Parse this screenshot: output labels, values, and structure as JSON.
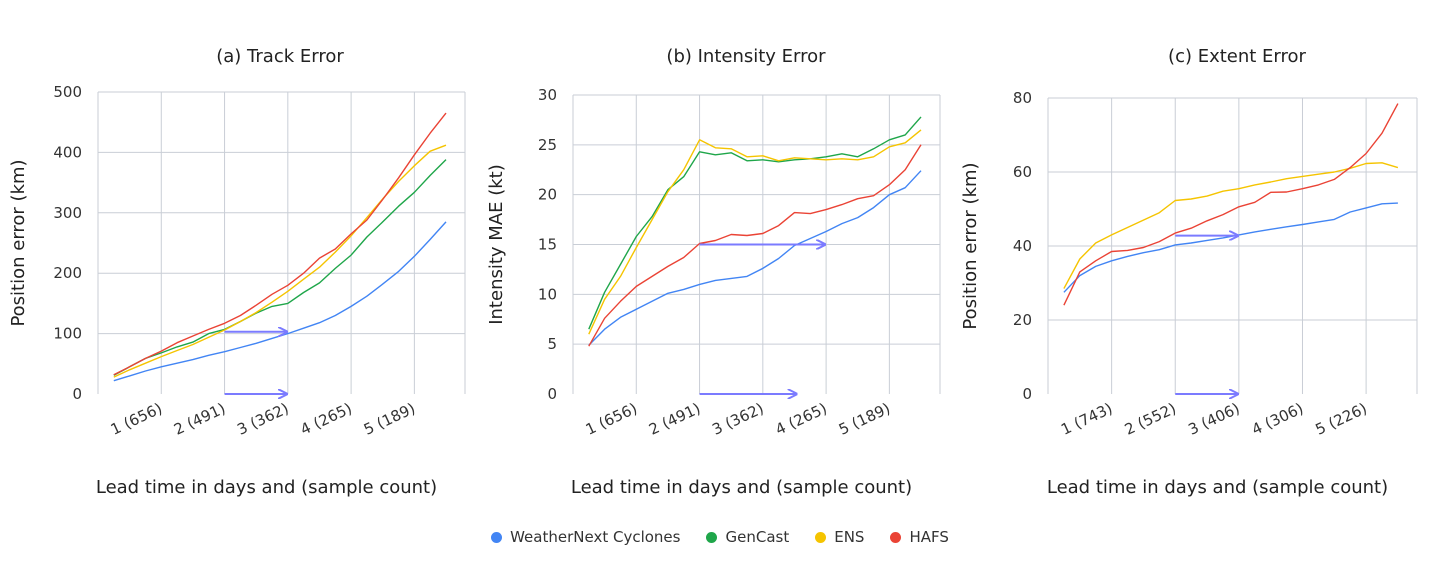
{
  "legend": [
    {
      "name": "WeatherNext Cyclones",
      "color": "#4285f4"
    },
    {
      "name": "GenCast",
      "color": "#1fa64a"
    },
    {
      "name": "ENS",
      "color": "#f5c400"
    },
    {
      "name": "HAFS",
      "color": "#ea4335"
    }
  ],
  "arrow_color": "#7b7bff",
  "chart_data": [
    {
      "type": "line",
      "title": "(a) Track Error",
      "xlabel": "Lead time in days and (sample count)",
      "ylabel": "Position error (km)",
      "ylim": [
        0,
        500
      ],
      "yticks": [
        0,
        100,
        200,
        300,
        400,
        500
      ],
      "xlim": [
        0,
        5.8
      ],
      "xticks": [
        1,
        2,
        3,
        4,
        5
      ],
      "xticklabels": [
        "1 (656)",
        "2 (491)",
        "3 (362)",
        "4 (265)",
        "5 (189)"
      ],
      "grid": true,
      "x": [
        0.25,
        0.5,
        0.75,
        1,
        1.25,
        1.5,
        1.75,
        2,
        2.25,
        2.5,
        2.75,
        3,
        3.25,
        3.5,
        3.75,
        4,
        4.25,
        4.5,
        4.75,
        5,
        5.25,
        5.5
      ],
      "series": [
        {
          "name": "WeatherNext Cyclones",
          "values": [
            22,
            30,
            38,
            45,
            51,
            57,
            64,
            70,
            77,
            84,
            92,
            100,
            109,
            118,
            130,
            145,
            162,
            182,
            203,
            228,
            256,
            285
          ]
        },
        {
          "name": "GenCast",
          "values": [
            31,
            45,
            59,
            68,
            78,
            86,
            100,
            107,
            120,
            134,
            145,
            150,
            168,
            184,
            208,
            230,
            260,
            285,
            311,
            334,
            362,
            388
          ]
        },
        {
          "name": "ENS",
          "values": [
            28,
            40,
            51,
            62,
            72,
            82,
            94,
            106,
            120,
            135,
            152,
            170,
            190,
            210,
            235,
            262,
            292,
            323,
            352,
            378,
            402,
            412
          ]
        },
        {
          "name": "HAFS",
          "values": [
            32,
            45,
            59,
            71,
            85,
            96,
            107,
            117,
            130,
            147,
            165,
            180,
            200,
            225,
            240,
            265,
            288,
            322,
            358,
            396,
            432,
            465
          ]
        }
      ],
      "arrows": [
        {
          "x0": 2,
          "x1": 3,
          "y": 103
        },
        {
          "x0": 2,
          "x1": 3,
          "y": 0
        }
      ]
    },
    {
      "type": "line",
      "title": "(b) Intensity Error",
      "xlabel": "Lead time in days and (sample count)",
      "ylabel": "Intensity MAE (kt)",
      "ylim": [
        0,
        30
      ],
      "yticks": [
        0,
        5,
        10,
        15,
        20,
        25,
        30
      ],
      "xlim": [
        0,
        5.8
      ],
      "xticks": [
        1,
        2,
        3,
        4,
        5
      ],
      "xticklabels": [
        "1 (656)",
        "2 (491)",
        "3 (362)",
        "4 (265)",
        "5 (189)"
      ],
      "grid": true,
      "x": [
        0.25,
        0.5,
        0.75,
        1,
        1.25,
        1.5,
        1.75,
        2,
        2.25,
        2.5,
        2.75,
        3,
        3.25,
        3.5,
        3.75,
        4,
        4.25,
        4.5,
        4.75,
        5,
        5.25,
        5.5
      ],
      "series": [
        {
          "name": "WeatherNext Cyclones",
          "values": [
            4.9,
            6.5,
            7.7,
            8.5,
            9.3,
            10.1,
            10.5,
            11.0,
            11.4,
            11.6,
            11.8,
            12.6,
            13.6,
            14.9,
            15.6,
            16.3,
            17.1,
            17.7,
            18.7,
            20.0,
            20.7,
            22.4
          ]
        },
        {
          "name": "GenCast",
          "values": [
            6.5,
            10.2,
            13.0,
            15.8,
            17.8,
            20.5,
            21.8,
            24.3,
            24.0,
            24.2,
            23.4,
            23.5,
            23.3,
            23.5,
            23.6,
            23.8,
            24.1,
            23.8,
            24.6,
            25.5,
            26.0,
            27.8
          ]
        },
        {
          "name": "ENS",
          "values": [
            6.0,
            9.5,
            11.8,
            14.7,
            17.5,
            20.3,
            22.5,
            25.5,
            24.7,
            24.6,
            23.8,
            23.9,
            23.4,
            23.7,
            23.6,
            23.5,
            23.6,
            23.5,
            23.8,
            24.8,
            25.2,
            26.5
          ]
        },
        {
          "name": "HAFS",
          "values": [
            4.8,
            7.6,
            9.3,
            10.8,
            11.8,
            12.8,
            13.7,
            15.1,
            15.4,
            16.0,
            15.9,
            16.1,
            16.9,
            18.2,
            18.1,
            18.5,
            19.0,
            19.6,
            19.9,
            21.0,
            22.5,
            25.0
          ]
        }
      ],
      "arrows": [
        {
          "x0": 2,
          "x1": 4,
          "y": 15
        },
        {
          "x0": 2,
          "x1": 3.55,
          "y": 0
        }
      ]
    },
    {
      "type": "line",
      "title": "(c) Extent Error",
      "xlabel": "Lead time in days and (sample count)",
      "ylabel": "Position error (km)",
      "ylim": [
        0,
        80
      ],
      "yticks": [
        0,
        20,
        40,
        60,
        80
      ],
      "xlim": [
        0,
        5.8
      ],
      "xticks": [
        1,
        2,
        3,
        4,
        5
      ],
      "xticklabels": [
        "1 (743)",
        "2 (552)",
        "3 (406)",
        "4 (306)",
        "5 (226)"
      ],
      "grid": true,
      "x": [
        0.25,
        0.5,
        0.75,
        1,
        1.25,
        1.5,
        1.75,
        2,
        2.25,
        2.5,
        2.75,
        3,
        3.25,
        3.5,
        3.75,
        4,
        4.25,
        4.5,
        4.75,
        5,
        5.25,
        5.5
      ],
      "series": [
        {
          "name": "WeatherNext Cyclones",
          "values": [
            27.5,
            32.0,
            34.5,
            36.0,
            37.2,
            38.2,
            39.0,
            40.3,
            40.8,
            41.5,
            42.2,
            43.0,
            43.8,
            44.5,
            45.2,
            45.8,
            46.5,
            47.2,
            49.2,
            50.3,
            51.4,
            51.6
          ]
        },
        {
          "name": "ENS",
          "values": [
            28.5,
            36.5,
            40.8,
            43.0,
            45.0,
            47.0,
            49.0,
            52.3,
            52.7,
            53.5,
            54.8,
            55.5,
            56.5,
            57.3,
            58.2,
            58.8,
            59.4,
            60.0,
            61.0,
            62.3,
            62.5,
            61.2
          ]
        },
        {
          "name": "HAFS",
          "values": [
            24.0,
            33.0,
            36.0,
            38.5,
            38.8,
            39.6,
            41.2,
            43.5,
            44.8,
            46.8,
            48.5,
            50.6,
            51.8,
            54.5,
            54.6,
            55.5,
            56.5,
            58.0,
            61.2,
            65.0,
            70.5,
            78.5
          ]
        }
      ],
      "arrows": [
        {
          "x0": 2,
          "x1": 3,
          "y": 42.8
        },
        {
          "x0": 2,
          "x1": 3,
          "y": 0
        }
      ]
    }
  ]
}
